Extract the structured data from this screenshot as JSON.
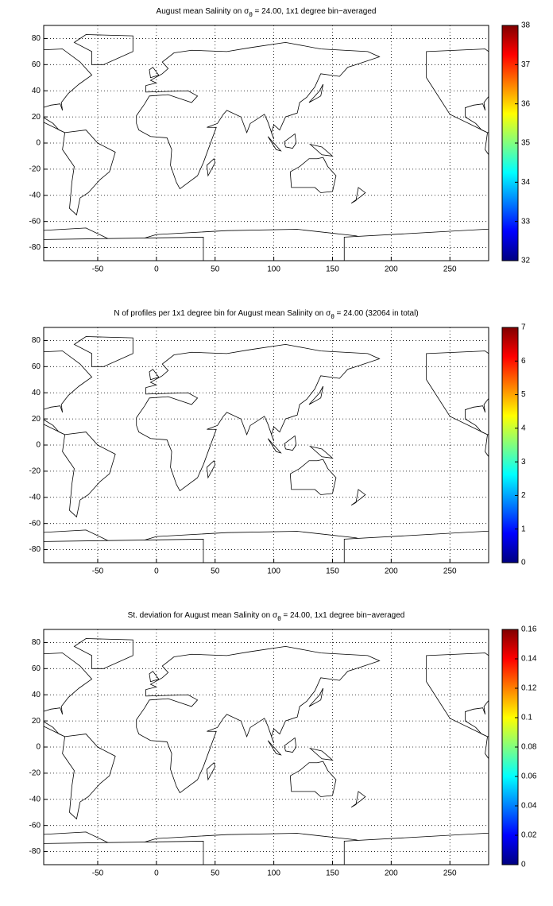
{
  "chart_data": [
    {
      "type": "map",
      "title": [
        "August mean Salinity on σ",
        "θ",
        " = 24.00, 1x1 degree bin−averaged"
      ],
      "xlim": [
        -96,
        283
      ],
      "ylim": [
        -90,
        90
      ],
      "xticks": [
        -50,
        0,
        50,
        100,
        150,
        200,
        250
      ],
      "yticks": [
        -80,
        -60,
        -40,
        -20,
        0,
        20,
        40,
        60,
        80
      ],
      "grid": true,
      "colormap": "jet",
      "clim": [
        32,
        38
      ],
      "cticks": [
        32,
        33,
        34,
        35,
        36,
        37,
        38
      ]
    },
    {
      "type": "map",
      "title": [
        "N of profiles per 1x1 degree bin for August mean Salinity on σ",
        "θ",
        " = 24.00 (32064 in total)"
      ],
      "xlim": [
        -96,
        283
      ],
      "ylim": [
        -90,
        90
      ],
      "xticks": [
        -50,
        0,
        50,
        100,
        150,
        200,
        250
      ],
      "yticks": [
        -80,
        -60,
        -40,
        -20,
        0,
        20,
        40,
        60,
        80
      ],
      "grid": true,
      "colormap": "jet",
      "clim": [
        0,
        7
      ],
      "cticks": [
        0,
        1,
        2,
        3,
        4,
        5,
        6,
        7
      ]
    },
    {
      "type": "map",
      "title": [
        "St. deviation for August mean Salinity on σ",
        "θ",
        " = 24.00, 1x1 degree bin−averaged"
      ],
      "xlim": [
        -96,
        283
      ],
      "ylim": [
        -90,
        90
      ],
      "xticks": [
        -50,
        0,
        50,
        100,
        150,
        200,
        250
      ],
      "yticks": [
        -80,
        -60,
        -40,
        -20,
        0,
        20,
        40,
        60,
        80
      ],
      "grid": true,
      "colormap": "jet",
      "clim": [
        0,
        0.16
      ],
      "cticks": [
        0,
        0.02,
        0.04,
        0.06,
        0.08,
        0.1,
        0.12,
        0.14,
        0.16
      ]
    }
  ]
}
